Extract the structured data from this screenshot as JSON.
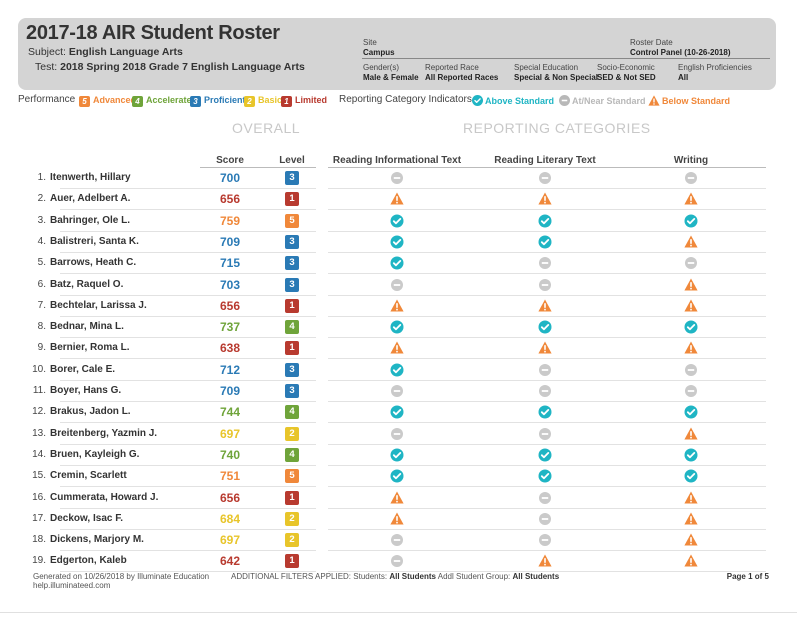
{
  "header": {
    "title": "2017-18 AIR Student Roster",
    "subject_label": "Subject:",
    "subject_value": "English Language Arts",
    "test_label": "Test:",
    "test_value": "2018 Spring 2018 Grade 7 English Language Arts",
    "site_label": "Site",
    "site_value": "Campus",
    "roster_date_label": "Roster Date",
    "roster_date_value": "Control Panel (10-26-2018)",
    "filters": [
      {
        "label": "Gender(s)",
        "value": "Male & Female"
      },
      {
        "label": "Reported Race",
        "value": "All Reported Races"
      },
      {
        "label": "Special Education",
        "value": "Special & Non Special"
      },
      {
        "label": "Socio-Economic",
        "value": "SED & Not SED"
      },
      {
        "label": "English Proficiencies",
        "value": "All"
      }
    ]
  },
  "legend": {
    "performance_label": "Performance",
    "levels": [
      {
        "num": "5",
        "label": "Advanced",
        "color": "#f0883a"
      },
      {
        "num": "4",
        "label": "Accelerated",
        "color": "#6fa43a"
      },
      {
        "num": "3",
        "label": "Proficient",
        "color": "#2a7ab5"
      },
      {
        "num": "2",
        "label": "Basic",
        "color": "#e8c52a"
      },
      {
        "num": "1",
        "label": "Limited",
        "color": "#b83a2f"
      }
    ],
    "indicators_label": "Reporting Category Indicators",
    "indicators": [
      {
        "type": "above",
        "label": "Above Standard",
        "color": "#1fb5c4"
      },
      {
        "type": "near",
        "label": "At/Near Standard",
        "color": "#b8b8b8"
      },
      {
        "type": "below",
        "label": "Below Standard",
        "color": "#f0883a"
      }
    ]
  },
  "sections": {
    "overall": "OVERALL",
    "reporting": "REPORTING CATEGORIES"
  },
  "columns": {
    "score": "Score",
    "level": "Level",
    "cat1": "Reading Informational Text",
    "cat2": "Reading Literary Text",
    "cat3": "Writing"
  },
  "students": [
    {
      "num": "1.",
      "name": "Itenwerth, Hillary",
      "score": "700",
      "level": "3",
      "cats": [
        "near",
        "near",
        "near"
      ]
    },
    {
      "num": "2.",
      "name": "Auer, Adelbert A.",
      "score": "656",
      "level": "1",
      "cats": [
        "below",
        "below",
        "below"
      ]
    },
    {
      "num": "3.",
      "name": "Bahringer, Ole L.",
      "score": "759",
      "level": "5",
      "cats": [
        "above",
        "above",
        "above"
      ]
    },
    {
      "num": "4.",
      "name": "Balistreri, Santa K.",
      "score": "709",
      "level": "3",
      "cats": [
        "above",
        "above",
        "below"
      ]
    },
    {
      "num": "5.",
      "name": "Barrows, Heath C.",
      "score": "715",
      "level": "3",
      "cats": [
        "above",
        "near",
        "near"
      ]
    },
    {
      "num": "6.",
      "name": "Batz, Raquel O.",
      "score": "703",
      "level": "3",
      "cats": [
        "near",
        "near",
        "below"
      ]
    },
    {
      "num": "7.",
      "name": "Bechtelar, Larissa J.",
      "score": "656",
      "level": "1",
      "cats": [
        "below",
        "below",
        "below"
      ]
    },
    {
      "num": "8.",
      "name": "Bednar, Mina L.",
      "score": "737",
      "level": "4",
      "cats": [
        "above",
        "above",
        "above"
      ]
    },
    {
      "num": "9.",
      "name": "Bernier, Roma L.",
      "score": "638",
      "level": "1",
      "cats": [
        "below",
        "below",
        "below"
      ]
    },
    {
      "num": "10.",
      "name": "Borer, Cale E.",
      "score": "712",
      "level": "3",
      "cats": [
        "above",
        "near",
        "near"
      ]
    },
    {
      "num": "11.",
      "name": "Boyer, Hans G.",
      "score": "709",
      "level": "3",
      "cats": [
        "near",
        "near",
        "near"
      ]
    },
    {
      "num": "12.",
      "name": "Brakus, Jadon L.",
      "score": "744",
      "level": "4",
      "cats": [
        "above",
        "above",
        "above"
      ]
    },
    {
      "num": "13.",
      "name": "Breitenberg, Yazmin J.",
      "score": "697",
      "level": "2",
      "cats": [
        "near",
        "near",
        "below"
      ]
    },
    {
      "num": "14.",
      "name": "Bruen, Kayleigh G.",
      "score": "740",
      "level": "4",
      "cats": [
        "above",
        "above",
        "above"
      ]
    },
    {
      "num": "15.",
      "name": "Cremin, Scarlett",
      "score": "751",
      "level": "5",
      "cats": [
        "above",
        "above",
        "above"
      ]
    },
    {
      "num": "16.",
      "name": "Cummerata, Howard J.",
      "score": "656",
      "level": "1",
      "cats": [
        "below",
        "near",
        "below"
      ]
    },
    {
      "num": "17.",
      "name": "Deckow, Isac F.",
      "score": "684",
      "level": "2",
      "cats": [
        "below",
        "near",
        "below"
      ]
    },
    {
      "num": "18.",
      "name": "Dickens, Marjory M.",
      "score": "697",
      "level": "2",
      "cats": [
        "near",
        "near",
        "below"
      ]
    },
    {
      "num": "19.",
      "name": "Edgerton, Kaleb",
      "score": "642",
      "level": "1",
      "cats": [
        "near",
        "below",
        "below"
      ]
    }
  ],
  "footer": {
    "generated": "Generated on 10/26/2018 by Illuminate Education",
    "site": "help.illuminateed.com",
    "filters_prefix": "ADDITIONAL FILTERS APPLIED:",
    "students_label": "Students:",
    "students_value": "All Students",
    "group_label": "Addl Student Group:",
    "group_value": "All Students",
    "page": "Page 1 of 5"
  }
}
